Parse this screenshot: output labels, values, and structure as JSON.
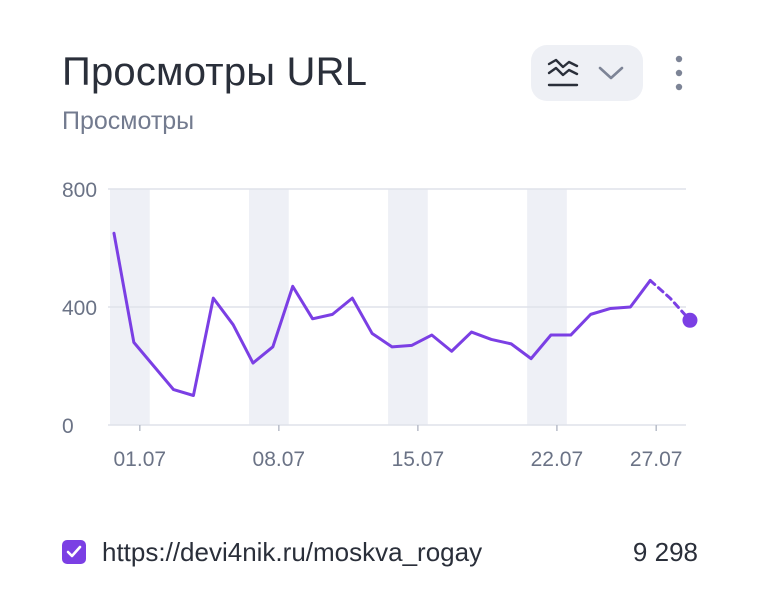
{
  "header": {
    "title": "Просмотры URL",
    "subtitle": "Просмотры",
    "chart_type_icon": "chart-lines-icon",
    "dropdown_icon": "chevron-down-icon",
    "menu_icon": "more-vertical-icon"
  },
  "colors": {
    "series": "#7b3fe4",
    "weekend_band": "#eef0f6",
    "grid": "#dfe2ea",
    "axis_text": "#6b7386"
  },
  "chart_data": {
    "type": "line",
    "x_tick_labels": [
      "01.07",
      "08.07",
      "15.07",
      "22.07",
      "27.07"
    ],
    "y_tick_labels": [
      "800",
      "400",
      "0"
    ],
    "y_ticks": [
      0,
      400,
      800
    ],
    "ylim": [
      0,
      800
    ],
    "x_range_days": [
      -0.5,
      28.5
    ],
    "x_tick_days": [
      1,
      8,
      15,
      22,
      27
    ],
    "weekend_bands_days": [
      [
        -0.5,
        1.5
      ],
      [
        6.5,
        8.5
      ],
      [
        13.5,
        15.5
      ],
      [
        20.5,
        22.5
      ]
    ],
    "grid": true,
    "series": [
      {
        "name": "https://devi4nik.ru/moskva_rogay",
        "total": "9 298",
        "x_days": [
          -0.3,
          0.7,
          1.7,
          2.7,
          3.7,
          4.7,
          5.7,
          6.7,
          7.7,
          8.7,
          9.7,
          10.7,
          11.7,
          12.7,
          13.7,
          14.7,
          15.7,
          16.7,
          17.7,
          18.7,
          19.7,
          20.7,
          21.7,
          22.7,
          23.7,
          24.7,
          25.7,
          26.7,
          27.7,
          28.7
        ],
        "values": [
          650,
          280,
          200,
          120,
          100,
          430,
          340,
          210,
          265,
          470,
          360,
          375,
          430,
          310,
          265,
          270,
          305,
          250,
          315,
          290,
          275,
          225,
          305,
          305,
          375,
          395,
          400,
          490,
          430,
          355
        ],
        "dashed_from_index": 27
      }
    ]
  },
  "legend": {
    "checked": true,
    "label": "https://devi4nik.ru/moskva_rogay",
    "value": "9 298"
  }
}
